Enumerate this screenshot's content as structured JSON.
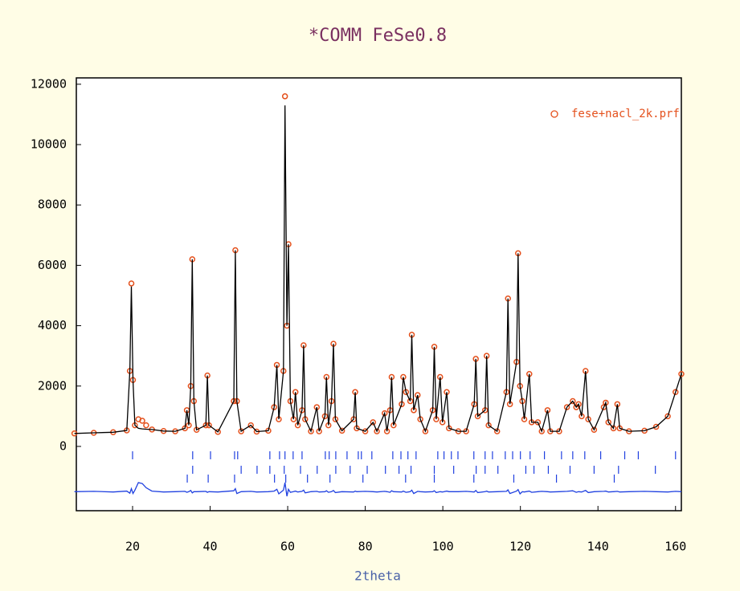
{
  "chart_data": {
    "type": "rietveld",
    "title": "*COMM FeSe0.8",
    "xlabel": "2theta",
    "xlim": [
      5.5,
      161.5
    ],
    "ylim": [
      -2130,
      12210
    ],
    "xticks": [
      20,
      40,
      60,
      80,
      100,
      120,
      140,
      160
    ],
    "yticks": [
      0,
      2000,
      4000,
      6000,
      8000,
      10000,
      12000
    ],
    "x": [
      5,
      10,
      15,
      18.5,
      19.3,
      19.7,
      20.1,
      20.6,
      21.5,
      22.5,
      23.5,
      25,
      28,
      31,
      33.5,
      34,
      34.5,
      35,
      35.4,
      35.8,
      36.5,
      38.9,
      39.3,
      39.7,
      42,
      46.1,
      46.5,
      46.9,
      48,
      50.5,
      52,
      55,
      56.5,
      57.2,
      57.7,
      58.9,
      59.3,
      59.8,
      60.2,
      60.7,
      61.5,
      62,
      62.6,
      63.7,
      64.1,
      64.5,
      66,
      67.5,
      68.1,
      69.6,
      70,
      70.5,
      71.3,
      71.8,
      72.3,
      74,
      77,
      77.4,
      77.8,
      80,
      82,
      83,
      85,
      85.6,
      86.4,
      86.8,
      87.3,
      89.4,
      89.8,
      90.5,
      91.6,
      92,
      92.5,
      93.5,
      94.2,
      95.5,
      97.4,
      97.8,
      98.3,
      99.3,
      99.9,
      101,
      101.6,
      104,
      106,
      108.1,
      108.5,
      109,
      110.9,
      111.3,
      111.8,
      114,
      116.4,
      116.8,
      117.3,
      119,
      119.4,
      119.9,
      120.5,
      121,
      122.3,
      122.9,
      124.5,
      125.5,
      127,
      127.7,
      130,
      132,
      133.5,
      134.4,
      135,
      135.8,
      136.8,
      137.5,
      139,
      141.5,
      142,
      142.7,
      144,
      145,
      145.6,
      148,
      152,
      155,
      158,
      160,
      161.5
    ],
    "series": [
      {
        "name": "fese+nacl_2k.prf",
        "color": "#e4501c",
        "marker": "circle",
        "values": [
          430,
          450,
          470,
          530,
          2500,
          5400,
          2200,
          700,
          900,
          850,
          700,
          560,
          510,
          500,
          600,
          1200,
          700,
          2000,
          6200,
          1500,
          550,
          700,
          2350,
          700,
          480,
          1500,
          6500,
          1500,
          500,
          700,
          490,
          520,
          1300,
          2700,
          900,
          2500,
          11600,
          4000,
          6700,
          1500,
          900,
          1800,
          700,
          1200,
          3350,
          900,
          500,
          1300,
          500,
          1000,
          2300,
          700,
          1500,
          3400,
          900,
          520,
          900,
          1800,
          600,
          500,
          800,
          500,
          1100,
          500,
          1200,
          2300,
          700,
          1400,
          2300,
          1800,
          1500,
          3700,
          1200,
          1700,
          900,
          500,
          1200,
          3300,
          900,
          2300,
          800,
          1800,
          600,
          500,
          500,
          1400,
          2900,
          1000,
          1200,
          3000,
          700,
          500,
          1800,
          4900,
          1400,
          2800,
          6400,
          2000,
          1500,
          900,
          2400,
          800,
          800,
          500,
          1200,
          500,
          500,
          1300,
          1500,
          1300,
          1400,
          1000,
          2500,
          900,
          550,
          1300,
          1450,
          800,
          600,
          1400,
          600,
          500,
          520,
          650,
          1000,
          1800,
          2400
        ]
      },
      {
        "color": "#000000",
        "values": [
          430,
          450,
          470,
          530,
          2500,
          5300,
          2200,
          700,
          600,
          580,
          570,
          560,
          510,
          500,
          600,
          1200,
          700,
          2000,
          6200,
          1500,
          550,
          700,
          2350,
          700,
          480,
          1500,
          6500,
          1500,
          500,
          700,
          490,
          520,
          1300,
          2700,
          900,
          2500,
          11300,
          4000,
          6700,
          1500,
          900,
          1800,
          700,
          1200,
          3350,
          900,
          500,
          1300,
          500,
          1000,
          2300,
          700,
          1500,
          3400,
          900,
          520,
          900,
          1800,
          600,
          500,
          800,
          500,
          1100,
          500,
          1200,
          2300,
          700,
          1400,
          2300,
          1800,
          1500,
          3700,
          1200,
          1700,
          900,
          500,
          1200,
          3300,
          900,
          2300,
          800,
          1800,
          600,
          500,
          500,
          1400,
          2900,
          1000,
          1200,
          3000,
          700,
          500,
          1800,
          4900,
          1400,
          2800,
          6400,
          2000,
          1500,
          900,
          2400,
          800,
          800,
          500,
          1200,
          500,
          500,
          1300,
          1500,
          1300,
          1400,
          1000,
          2500,
          900,
          550,
          1300,
          1450,
          800,
          600,
          1400,
          600,
          500,
          520,
          650,
          1000,
          1800,
          2400
        ]
      },
      {
        "color": "#1f40e0",
        "values": [
          -1500,
          -1490,
          -1510,
          -1480,
          -1550,
          -1400,
          -1560,
          -1450,
          -1200,
          -1230,
          -1370,
          -1480,
          -1510,
          -1500,
          -1490,
          -1520,
          -1500,
          -1460,
          -1540,
          -1500,
          -1500,
          -1490,
          -1520,
          -1500,
          -1510,
          -1470,
          -1400,
          -1560,
          -1500,
          -1490,
          -1510,
          -1500,
          -1480,
          -1420,
          -1570,
          -1450,
          -1200,
          -1650,
          -1420,
          -1520,
          -1500,
          -1480,
          -1510,
          -1490,
          -1450,
          -1540,
          -1500,
          -1490,
          -1510,
          -1500,
          -1470,
          -1520,
          -1500,
          -1460,
          -1530,
          -1500,
          -1510,
          -1480,
          -1500,
          -1490,
          -1500,
          -1510,
          -1490,
          -1500,
          -1520,
          -1470,
          -1500,
          -1510,
          -1480,
          -1520,
          -1500,
          -1450,
          -1560,
          -1490,
          -1500,
          -1510,
          -1500,
          -1470,
          -1530,
          -1500,
          -1510,
          -1480,
          -1500,
          -1500,
          -1490,
          -1510,
          -1460,
          -1530,
          -1500,
          -1480,
          -1510,
          -1500,
          -1490,
          -1440,
          -1560,
          -1480,
          -1430,
          -1570,
          -1500,
          -1510,
          -1480,
          -1520,
          -1500,
          -1490,
          -1500,
          -1510,
          -1500,
          -1490,
          -1470,
          -1520,
          -1500,
          -1510,
          -1460,
          -1530,
          -1500,
          -1490,
          -1480,
          -1510,
          -1500,
          -1490,
          -1510,
          -1500,
          -1490,
          -1500,
          -1510,
          -1490,
          -1500
        ]
      }
    ],
    "reflections": {
      "color": "#2040e0",
      "rows": [
        [
          20.0,
          35.5,
          40.1,
          46.3,
          47.1,
          55.4,
          57.9,
          59.3,
          61.4,
          63.7,
          69.7,
          70.7,
          72.4,
          75.3,
          78.2,
          79.0,
          81.7,
          87.1,
          89.2,
          91.0,
          93.1,
          98.7,
          100.3,
          102.2,
          103.9,
          108.0,
          110.9,
          112.8,
          116.1,
          118.0,
          120.0,
          122.5,
          126.2,
          130.6,
          133.5,
          136.6,
          140.7,
          146.9,
          150.4,
          160.0
        ],
        [
          35.5,
          48.0,
          52.1,
          55.4,
          59.1,
          63.3,
          67.6,
          72.4,
          76.1,
          80.5,
          85.2,
          88.7,
          91.8,
          97.8,
          102.8,
          108.6,
          110.9,
          114.2,
          121.4,
          123.5,
          127.2,
          132.8,
          139.0,
          145.3,
          154.8
        ],
        [
          34.1,
          39.5,
          46.3,
          56.6,
          59.5,
          65.1,
          70.9,
          79.4,
          90.4,
          97.8,
          108.0,
          118.3,
          129.3,
          144.2
        ]
      ]
    }
  }
}
